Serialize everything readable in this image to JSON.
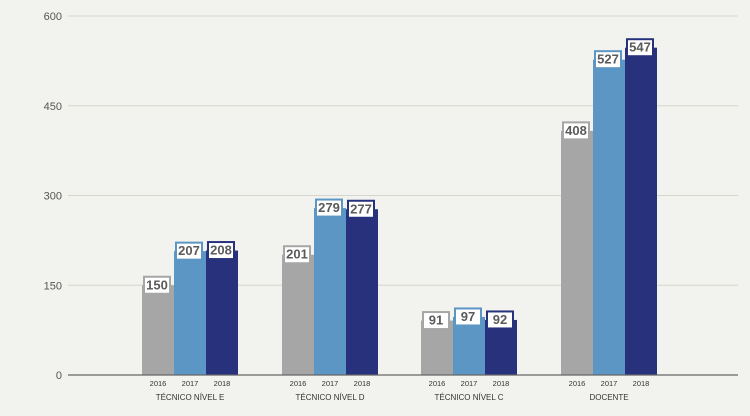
{
  "chart_data": {
    "type": "bar",
    "categories": [
      "TÉCNICO NÍVEL E",
      "TÉCNICO NÍVEL D",
      "TÉCNICO NÍVEL C",
      "DOCENTE"
    ],
    "series": [
      {
        "year": "2016",
        "values": [
          150,
          201,
          91,
          408
        ],
        "color": "#a6a6a6"
      },
      {
        "year": "2017",
        "values": [
          207,
          279,
          97,
          527
        ],
        "color": "#5b96c4"
      },
      {
        "year": "2018",
        "values": [
          208,
          277,
          92,
          547
        ],
        "color": "#27317c"
      }
    ],
    "y_ticks": [
      "0",
      "150",
      "300",
      "450",
      "600"
    ],
    "ylim": [
      0,
      600
    ],
    "grid": true,
    "legend": "none",
    "title": "",
    "xlabel": "",
    "ylabel": ""
  }
}
